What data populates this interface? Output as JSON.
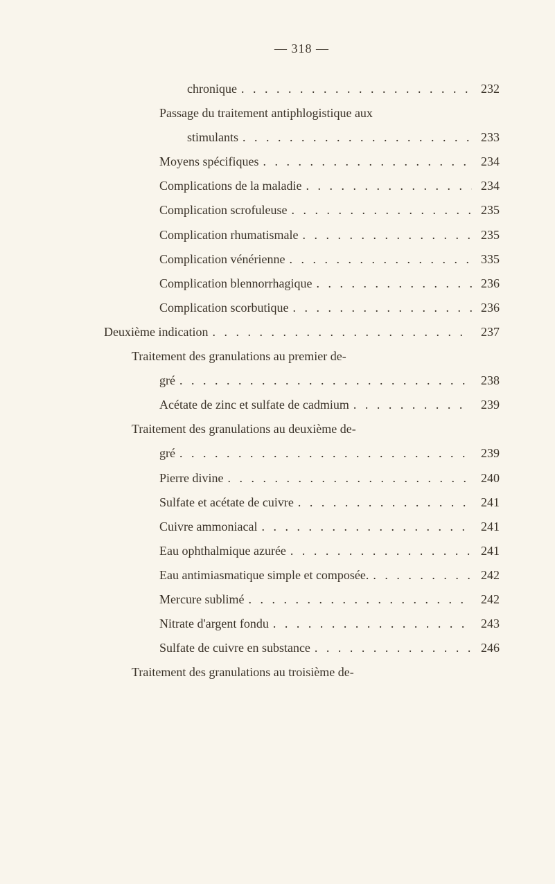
{
  "page_header": "— 318 —",
  "entries": [
    {
      "text": "chronique",
      "page": "232",
      "indent": 3,
      "has_page": true
    },
    {
      "text": "Passage du traitement antiphlogistique aux",
      "page": "",
      "indent": 2,
      "has_page": false
    },
    {
      "text": "stimulants",
      "page": "233",
      "indent": 3,
      "has_page": true
    },
    {
      "text": "Moyens spécifiques",
      "page": "234",
      "indent": 2,
      "has_page": true
    },
    {
      "text": "Complications de la maladie",
      "page": "234",
      "indent": 2,
      "has_page": true
    },
    {
      "text": "Complication scrofuleuse",
      "page": "235",
      "indent": 2,
      "has_page": true
    },
    {
      "text": "Complication rhumatismale",
      "page": "235",
      "indent": 2,
      "has_page": true
    },
    {
      "text": "Complication vénérienne",
      "page": "335",
      "indent": 2,
      "has_page": true
    },
    {
      "text": "Complication blennorrhagique",
      "page": "236",
      "indent": 2,
      "has_page": true
    },
    {
      "text": "Complication scorbutique",
      "page": "236",
      "indent": 2,
      "has_page": true
    },
    {
      "text": "Deuxième indication",
      "page": "237",
      "indent": 0,
      "has_page": true
    },
    {
      "text": "Traitement des granulations au premier de-",
      "page": "",
      "indent": 1,
      "has_page": false
    },
    {
      "text": "gré",
      "page": "238",
      "indent": 2,
      "has_page": true
    },
    {
      "text": "Acétate de zinc et sulfate de cadmium",
      "page": "239",
      "indent": 2,
      "has_page": true
    },
    {
      "text": "Traitement des granulations au deuxième de-",
      "page": "",
      "indent": 1,
      "has_page": false
    },
    {
      "text": "gré",
      "page": "239",
      "indent": 2,
      "has_page": true
    },
    {
      "text": "Pierre divine",
      "page": "240",
      "indent": 2,
      "has_page": true
    },
    {
      "text": "Sulfate et acétate de cuivre",
      "page": "241",
      "indent": 2,
      "has_page": true
    },
    {
      "text": "Cuivre ammoniacal",
      "page": "241",
      "indent": 2,
      "has_page": true
    },
    {
      "text": "Eau ophthalmique azurée",
      "page": "241",
      "indent": 2,
      "has_page": true
    },
    {
      "text": "Eau antimiasmatique simple et composée.",
      "page": "242",
      "indent": 2,
      "has_page": true
    },
    {
      "text": "Mercure sublimé",
      "page": "242",
      "indent": 2,
      "has_page": true
    },
    {
      "text": "Nitrate d'argent fondu",
      "page": "243",
      "indent": 2,
      "has_page": true
    },
    {
      "text": "Sulfate de cuivre en substance",
      "page": "246",
      "indent": 2,
      "has_page": true
    },
    {
      "text": "Traitement des granulations au troisième de-",
      "page": "",
      "indent": 1,
      "has_page": false
    }
  ],
  "dots_string": ". . . . . . . . . . . . . . . . . . . . . . . . . . . . . ."
}
